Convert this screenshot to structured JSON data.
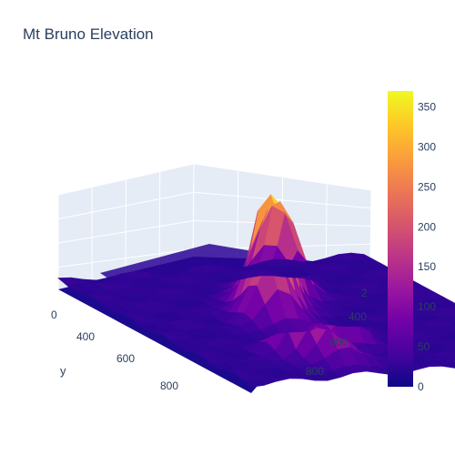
{
  "chart_data": {
    "type": "surface",
    "title": "Mt Bruno Elevation",
    "colorscale": "plasma",
    "colorscale_stops": [
      "#0d0887",
      "#46039f",
      "#7201a8",
      "#9c179e",
      "#bd3786",
      "#d8576b",
      "#ed7953",
      "#fb9f3a",
      "#fdca26",
      "#f0f921"
    ],
    "zlim": [
      0,
      370
    ],
    "colorbar": {
      "ticks": [
        "0",
        "50",
        "100",
        "150",
        "200",
        "250",
        "300",
        "350"
      ],
      "values": [
        0,
        50,
        100,
        150,
        200,
        250,
        300,
        350
      ]
    },
    "xaxis": {
      "label": "",
      "ticks": [
        "2",
        "400",
        "600",
        "800"
      ]
    },
    "yaxis": {
      "label": "y",
      "ticks": [
        "0",
        "400",
        "600",
        "800"
      ]
    },
    "peaks": [
      {
        "x": 560,
        "y": 400,
        "z": 360
      },
      {
        "x": 430,
        "y": 260,
        "z": 230
      },
      {
        "x": 500,
        "y": 300,
        "z": 210
      },
      {
        "x": 620,
        "y": 500,
        "z": 190
      },
      {
        "x": 700,
        "y": 760,
        "z": 180
      },
      {
        "x": 520,
        "y": 700,
        "z": 160
      },
      {
        "x": 640,
        "y": 860,
        "z": 150
      }
    ]
  }
}
